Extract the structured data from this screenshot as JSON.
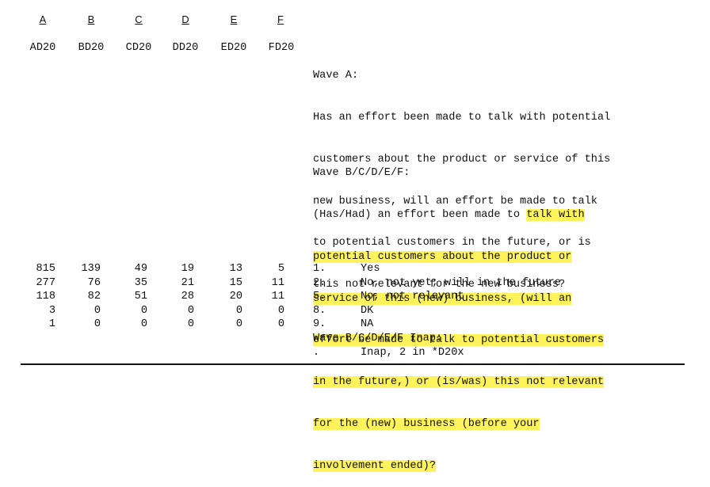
{
  "columns": [
    "A",
    "B",
    "C",
    "D",
    "E",
    "F"
  ],
  "variables": [
    "AD20",
    "BD20",
    "CD20",
    "DD20",
    "ED20",
    "FD20"
  ],
  "wave_a": {
    "label": "Wave A:",
    "lines": [
      "Has an effort been made to talk with potential",
      "customers about the product or service of this",
      "new business, will an effort be made to talk",
      "to potential customers in the future, or is",
      "this not relevant for the new business?"
    ]
  },
  "wave_bf": {
    "label": "Wave B/C/D/E/F:",
    "line1_plain": "(Has/Had) an effort been made to ",
    "line1_hl": "talk with",
    "lines_hl": [
      "potential customers about the product or",
      "service of this (new) business, (will an",
      "effort be made to talk to potential customers",
      "in the future,) or (is/was) this not relevant",
      "for the (new) business (before your",
      "involvement ended)?"
    ]
  },
  "frequencies": [
    [
      "815",
      "139",
      "49",
      "19",
      "13",
      "5"
    ],
    [
      "277",
      "76",
      "35",
      "21",
      "15",
      "11"
    ],
    [
      "118",
      "82",
      "51",
      "28",
      "20",
      "11"
    ],
    [
      "3",
      "0",
      "0",
      "0",
      "0",
      "0"
    ],
    [
      "1",
      "0",
      "0",
      "0",
      "0",
      "0"
    ]
  ],
  "codes": [
    {
      "code": "1.",
      "label": "Yes"
    },
    {
      "code": "2.",
      "label": "No, not yet; will in the future"
    },
    {
      "code": "5.",
      "label": "No, not relevant"
    },
    {
      "code": "8.",
      "label": "DK"
    },
    {
      "code": "9.",
      "label": "NA"
    }
  ],
  "inap": {
    "label": "Wave B/C/D/E/F Inap:",
    "code": ".",
    "text": "Inap, 2 in *D20x"
  }
}
